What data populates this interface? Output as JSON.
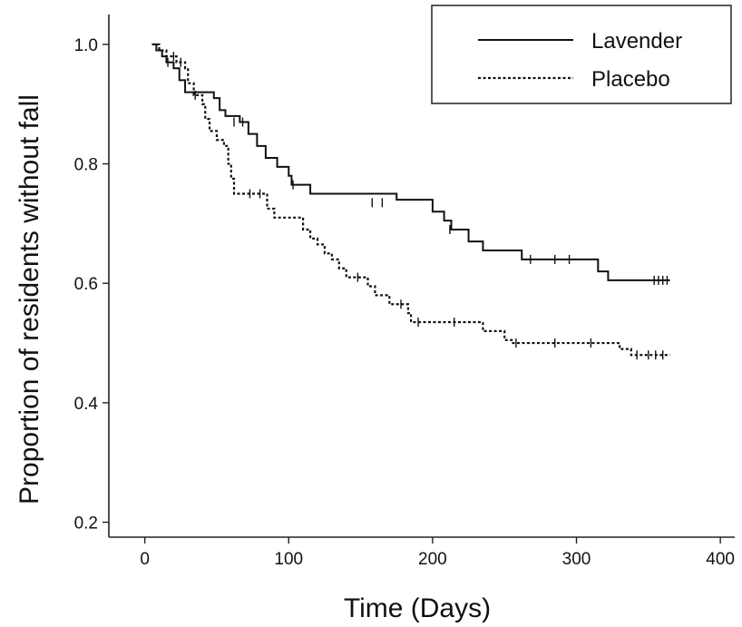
{
  "chart_data": {
    "type": "line",
    "title": "",
    "xlabel": "Time (Days)",
    "ylabel": "Proportion of residents without fall",
    "xlim": [
      -25,
      410
    ],
    "ylim": [
      0.175,
      1.05
    ],
    "xticks": [
      0,
      100,
      200,
      300,
      400
    ],
    "yticks": [
      0.2,
      0.4,
      0.6,
      0.8,
      1.0
    ],
    "xtick_labels": [
      "0",
      "100",
      "200",
      "300",
      "400"
    ],
    "ytick_labels": [
      "0.2",
      "0.4",
      "0.6",
      "0.8",
      "1.0"
    ],
    "legend": {
      "placement": "top-right"
    },
    "series": [
      {
        "name": "Lavender",
        "style": "solid",
        "color": "#111111",
        "steps": [
          [
            5,
            1.0
          ],
          [
            8,
            0.99
          ],
          [
            12,
            0.98
          ],
          [
            15,
            0.97
          ],
          [
            20,
            0.96
          ],
          [
            24,
            0.94
          ],
          [
            28,
            0.92
          ],
          [
            48,
            0.91
          ],
          [
            52,
            0.89
          ],
          [
            56,
            0.88
          ],
          [
            66,
            0.87
          ],
          [
            72,
            0.85
          ],
          [
            78,
            0.83
          ],
          [
            84,
            0.81
          ],
          [
            92,
            0.795
          ],
          [
            100,
            0.78
          ],
          [
            102,
            0.765
          ],
          [
            115,
            0.75
          ],
          [
            175,
            0.74
          ],
          [
            200,
            0.72
          ],
          [
            208,
            0.705
          ],
          [
            213,
            0.69
          ],
          [
            225,
            0.67
          ],
          [
            235,
            0.655
          ],
          [
            262,
            0.64
          ],
          [
            315,
            0.62
          ],
          [
            322,
            0.605
          ],
          [
            365,
            0.605
          ]
        ],
        "censored": [
          [
            16,
            0.97
          ],
          [
            62,
            0.87
          ],
          [
            68,
            0.87
          ],
          [
            103,
            0.765
          ],
          [
            158,
            0.735
          ],
          [
            165,
            0.735
          ],
          [
            212,
            0.69
          ],
          [
            268,
            0.64
          ],
          [
            285,
            0.64
          ],
          [
            295,
            0.64
          ],
          [
            354,
            0.605
          ],
          [
            357,
            0.605
          ],
          [
            360,
            0.605
          ],
          [
            363,
            0.605
          ]
        ]
      },
      {
        "name": "Placebo",
        "style": "dotted",
        "color": "#111111",
        "steps": [
          [
            5,
            1.0
          ],
          [
            10,
            0.99
          ],
          [
            15,
            0.98
          ],
          [
            22,
            0.97
          ],
          [
            28,
            0.96
          ],
          [
            30,
            0.935
          ],
          [
            34,
            0.915
          ],
          [
            40,
            0.9
          ],
          [
            42,
            0.875
          ],
          [
            45,
            0.855
          ],
          [
            50,
            0.84
          ],
          [
            55,
            0.83
          ],
          [
            58,
            0.8
          ],
          [
            60,
            0.775
          ],
          [
            62,
            0.75
          ],
          [
            85,
            0.725
          ],
          [
            90,
            0.71
          ],
          [
            110,
            0.69
          ],
          [
            115,
            0.675
          ],
          [
            120,
            0.665
          ],
          [
            125,
            0.65
          ],
          [
            130,
            0.64
          ],
          [
            135,
            0.625
          ],
          [
            140,
            0.61
          ],
          [
            155,
            0.595
          ],
          [
            160,
            0.58
          ],
          [
            170,
            0.565
          ],
          [
            183,
            0.55
          ],
          [
            185,
            0.535
          ],
          [
            235,
            0.52
          ],
          [
            250,
            0.505
          ],
          [
            255,
            0.5
          ],
          [
            330,
            0.49
          ],
          [
            338,
            0.48
          ],
          [
            365,
            0.48
          ]
        ],
        "censored": [
          [
            20,
            0.98
          ],
          [
            25,
            0.97
          ],
          [
            35,
            0.915
          ],
          [
            73,
            0.75
          ],
          [
            80,
            0.75
          ],
          [
            148,
            0.61
          ],
          [
            178,
            0.565
          ],
          [
            190,
            0.535
          ],
          [
            215,
            0.535
          ],
          [
            258,
            0.5
          ],
          [
            285,
            0.5
          ],
          [
            310,
            0.5
          ],
          [
            342,
            0.48
          ],
          [
            350,
            0.48
          ],
          [
            355,
            0.48
          ],
          [
            360,
            0.48
          ]
        ]
      }
    ]
  }
}
